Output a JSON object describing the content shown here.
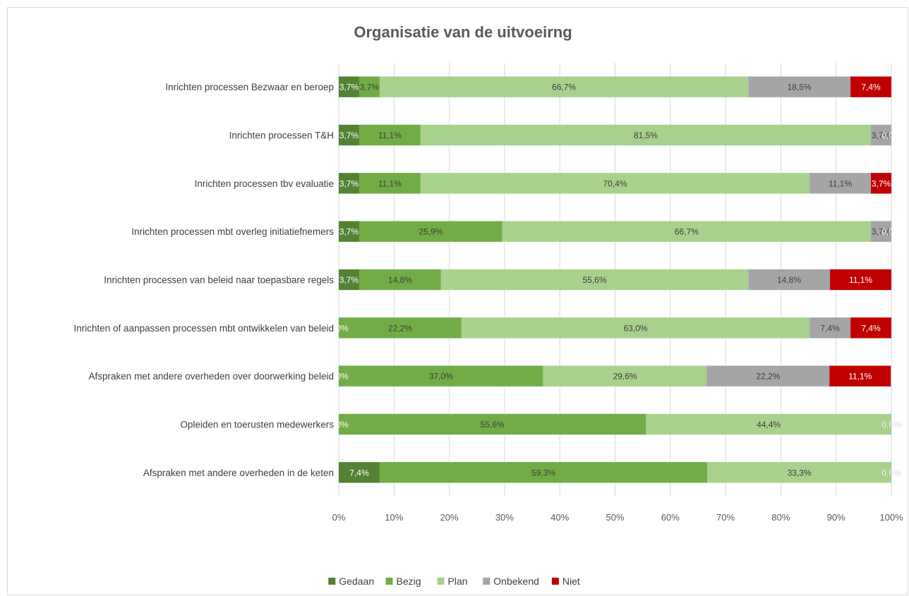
{
  "chart_data": {
    "type": "bar",
    "orientation": "horizontal",
    "stacked": "percent",
    "title": "Organisatie  van de uitvoeirng",
    "categories": [
      "Inrichten processen Bezwaar en beroep",
      "Inrichten processen T&H",
      "Inrichten processen tbv evaluatie",
      "Inrichten processen mbt overleg initiatiefnemers",
      "Inrichten processen van beleid naar toepasbare regels",
      "Inrichten of aanpassen processen mbt ontwikkelen van beleid",
      "Afspraken met andere overheden over doorwerking beleid",
      "Opleiden en toerusten medewerkers",
      "Afspraken met andere overheden in de keten"
    ],
    "series": [
      {
        "name": "Gedaan",
        "color": "#548235",
        "label_color": "#ffffff",
        "values": [
          3.7,
          3.7,
          3.7,
          3.7,
          3.7,
          0.0,
          0.0,
          0.0,
          7.4
        ],
        "labels": [
          "3,7%",
          "3,7%",
          "3,7%",
          "3,7%",
          "3,7%",
          "0,0%",
          "0,0%",
          "0,0%",
          "7,4%"
        ]
      },
      {
        "name": "Bezig",
        "color": "#70ad47",
        "label_color": "#404040",
        "values": [
          3.7,
          11.1,
          11.1,
          25.9,
          14.8,
          22.2,
          37.0,
          55.6,
          59.3
        ],
        "labels": [
          "3,7%",
          "11,1%",
          "11,1%",
          "25,9%",
          "14,8%",
          "22,2%",
          "37,0%",
          "55,6%",
          "59,3%"
        ]
      },
      {
        "name": "Plan",
        "color": "#a9d18e",
        "label_color": "#404040",
        "values": [
          66.7,
          81.5,
          70.4,
          66.7,
          55.6,
          63.0,
          29.6,
          44.4,
          33.3
        ],
        "labels": [
          "66,7%",
          "81,5%",
          "70,4%",
          "66,7%",
          "55,6%",
          "63,0%",
          "29,6%",
          "44,4%",
          "33,3%"
        ]
      },
      {
        "name": "Onbekend",
        "color": "#a5a5a5",
        "label_color": "#404040",
        "values": [
          18.5,
          3.7,
          11.1,
          3.7,
          14.8,
          7.4,
          22.2,
          0.0,
          0.0
        ],
        "labels": [
          "18,5%",
          "3,7%",
          "11,1%",
          "3,7%",
          "14,8%",
          "7,4%",
          "22,2%",
          "0,0%",
          "0,0%"
        ]
      },
      {
        "name": "Niet",
        "color": "#c00000",
        "label_color": "#ffffff",
        "values": [
          7.4,
          0.0,
          3.7,
          0.0,
          11.1,
          7.4,
          11.1,
          0.0,
          0.0
        ],
        "labels": [
          "7,4%",
          "0,0%",
          "3,7%",
          "0,0%",
          "11,1%",
          "7,4%",
          "11,1%",
          "0,0%",
          "0,0%"
        ]
      }
    ],
    "xlim": [
      0,
      100
    ],
    "xticks": [
      "0%",
      "10%",
      "20%",
      "30%",
      "40%",
      "50%",
      "60%",
      "70%",
      "80%",
      "90%",
      "100%"
    ],
    "grid": "vertical",
    "legend": "bottom"
  }
}
